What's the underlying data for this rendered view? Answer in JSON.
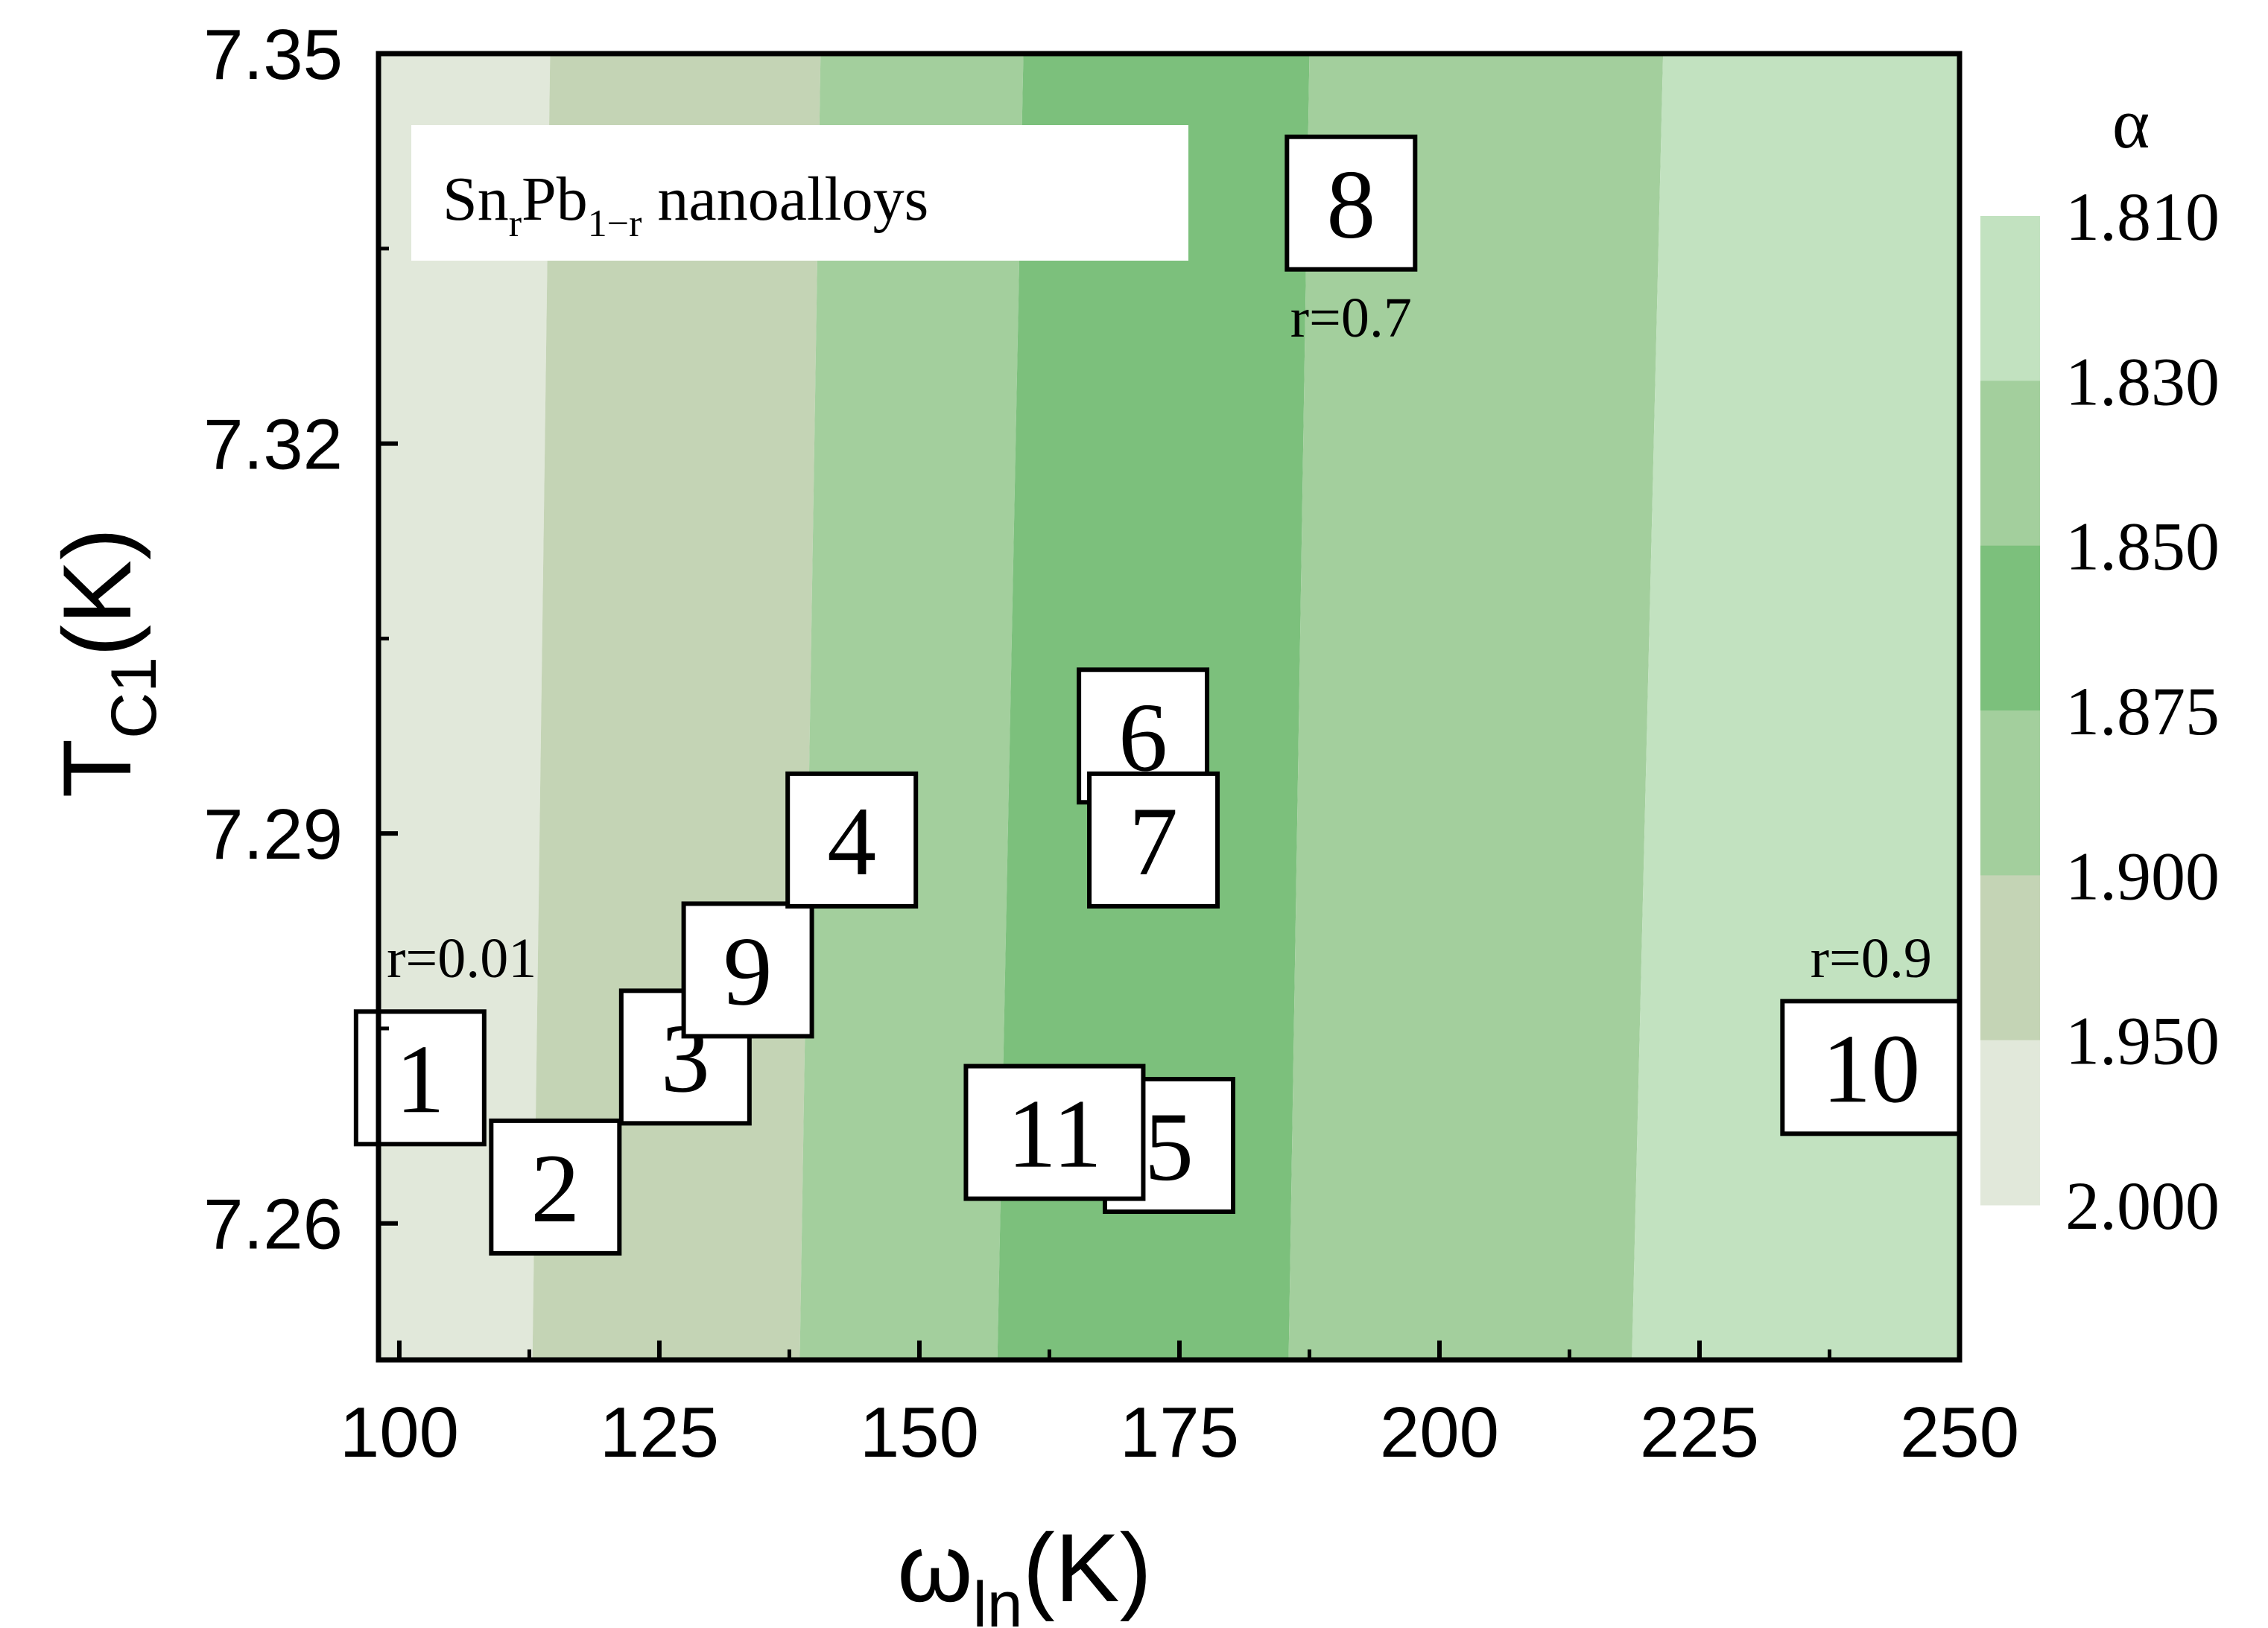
{
  "chart_data": {
    "type": "heatmap",
    "title": "",
    "xlabel": {
      "main": "ω",
      "sub": "ln",
      "unit": "(K)"
    },
    "ylabel": {
      "main": "T",
      "sub": "C1",
      "unit": "(K)"
    },
    "xlim": [
      98,
      250
    ],
    "ylim": [
      7.2495,
      7.35
    ],
    "xticks": [
      100,
      125,
      150,
      175,
      200,
      225,
      250
    ],
    "xtick_labels": [
      "100",
      "125",
      "150",
      "175",
      "200",
      "225",
      "250"
    ],
    "yticks": [
      7.26,
      7.29,
      7.32,
      7.35
    ],
    "ytick_labels": [
      "7.26",
      "7.29",
      "7.32",
      "7.35"
    ],
    "annotation_box": {
      "main": "Sn",
      "sub1": "r",
      "mid": "Pb",
      "sub2": "1−r",
      "tail": " nanoalloys"
    },
    "contour_levels": [
      {
        "label": "2.000",
        "color": "#e1e8da"
      },
      {
        "label": "1.950",
        "color": "#c4d4b5"
      },
      {
        "label": "1.900",
        "color": "#a3cf9d"
      },
      {
        "label": "1.875",
        "color": "#7cc07c"
      },
      {
        "label": "1.850",
        "color": "#a3cf9d"
      },
      {
        "label": "1.830",
        "color": "#c2e2c0"
      },
      {
        "label": "1.810",
        "color": "#c2e2c0"
      }
    ],
    "regions": [
      {
        "color": "#e1e8da",
        "x_bottom": [
          98,
          112.8
        ],
        "x_top": [
          98,
          114.5
        ]
      },
      {
        "color": "#c4d4b5",
        "x_bottom": [
          112.8,
          138.5
        ],
        "x_top": [
          114.5,
          140.5
        ]
      },
      {
        "color": "#a3cf9d",
        "x_bottom": [
          138.5,
          157.5
        ],
        "x_top": [
          140.5,
          160
        ]
      },
      {
        "color": "#7cc07c",
        "x_bottom": [
          157.5,
          185.5
        ],
        "x_top": [
          160,
          187.5
        ]
      },
      {
        "color": "#a3cf9d",
        "x_bottom": [
          185.5,
          218.5
        ],
        "x_top": [
          187.5,
          221.5
        ]
      },
      {
        "color": "#c2e2c0",
        "x_bottom": [
          218.5,
          250
        ],
        "x_top": [
          221.5,
          250
        ]
      }
    ],
    "colorbar": {
      "title": "α",
      "labels": [
        "1.810",
        "1.830",
        "1.850",
        "1.875",
        "1.900",
        "1.950",
        "2.000"
      ],
      "colors": [
        "#c2e2c0",
        "#a3cf9d",
        "#7cc07c",
        "#a3cf9d",
        "#c4d4b5",
        "#e1e8da"
      ]
    },
    "points": [
      {
        "label": "1",
        "x": 102.0,
        "y": 7.2712
      },
      {
        "label": "2",
        "x": 115.0,
        "y": 7.2628
      },
      {
        "label": "3",
        "x": 127.5,
        "y": 7.2728
      },
      {
        "label": "9",
        "x": 133.5,
        "y": 7.2795
      },
      {
        "label": "4",
        "x": 143.5,
        "y": 7.2895
      },
      {
        "label": "6",
        "x": 171.5,
        "y": 7.2975
      },
      {
        "label": "7",
        "x": 172.5,
        "y": 7.2895
      },
      {
        "label": "5",
        "x": 174.0,
        "y": 7.266
      },
      {
        "label": "11",
        "x": 163.0,
        "y": 7.267
      },
      {
        "label": "8",
        "x": 191.5,
        "y": 7.3385
      },
      {
        "label": "10",
        "x": 241.5,
        "y": 7.272
      }
    ],
    "point_notes": [
      {
        "text": "r=0.01",
        "x": 106.0,
        "y": 7.2802
      },
      {
        "text": "r=0.7",
        "x": 191.5,
        "y": 7.3295
      },
      {
        "text": "r=0.9",
        "x": 241.5,
        "y": 7.2802
      }
    ]
  }
}
